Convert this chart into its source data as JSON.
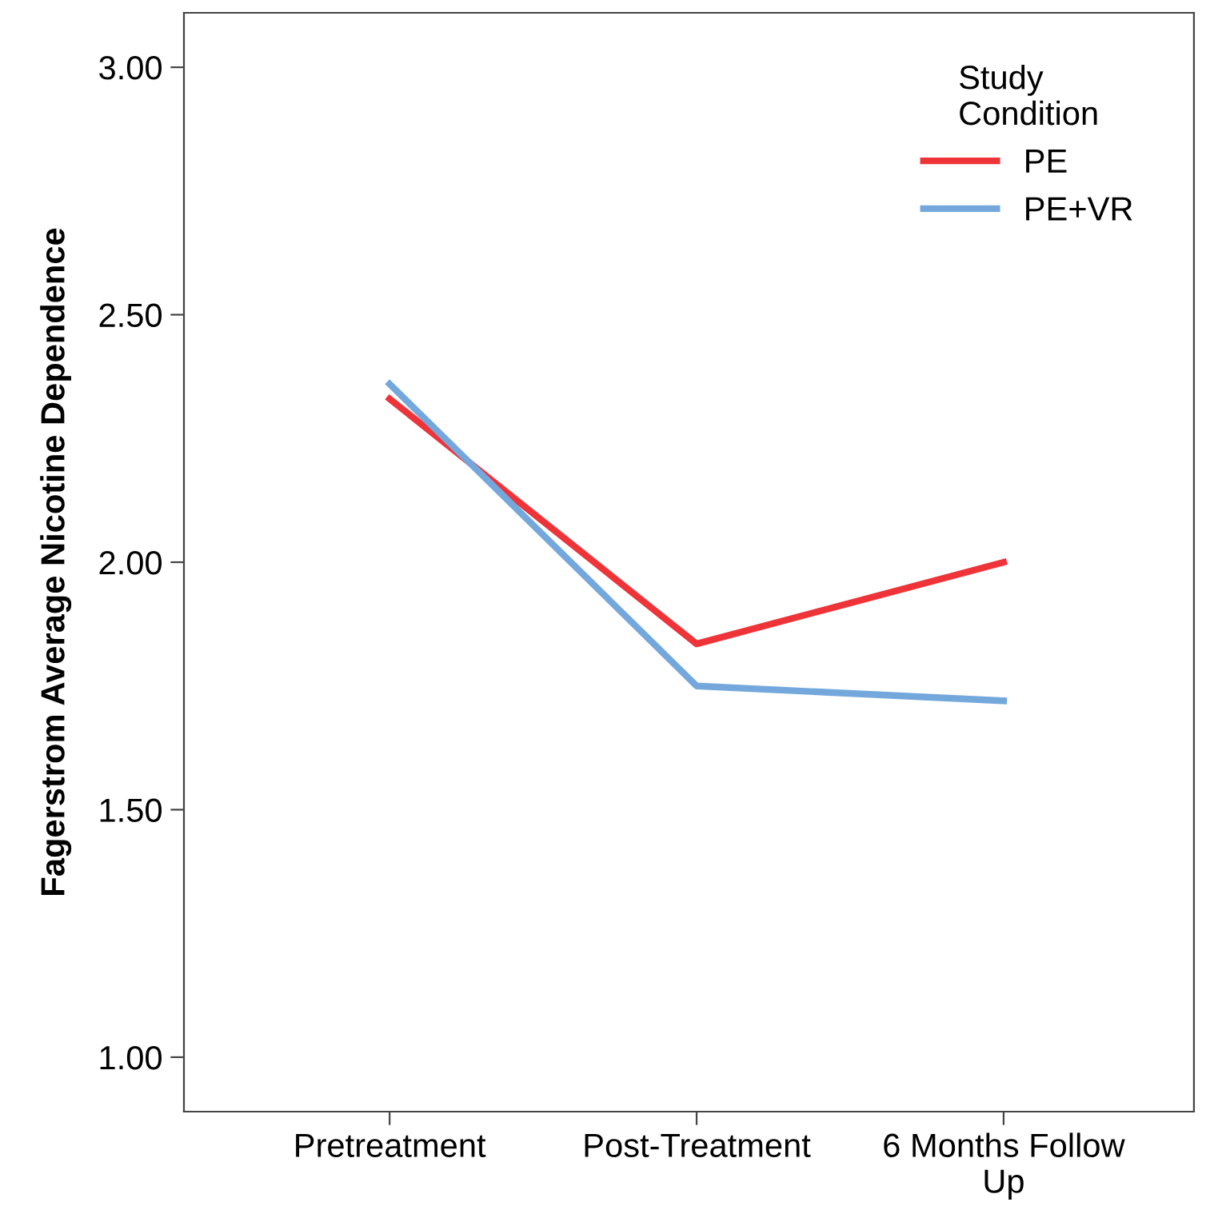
{
  "chart_data": {
    "type": "line",
    "ylabel": "Fagerstrom Average Nicotine Dependence",
    "legend_title": "Study\nCondition",
    "categories": [
      "Pretreatment",
      "Post-Treatment",
      "6 Months Follow\nUp"
    ],
    "series": [
      {
        "name": "PE",
        "color": "#ee3438",
        "values": [
          2.33,
          1.835,
          2.0
        ]
      },
      {
        "name": "PE+VR",
        "color": "#74a8dc",
        "values": [
          2.36,
          1.75,
          1.72
        ]
      }
    ],
    "ylim": [
      0.89,
      3.11
    ],
    "yticks": [
      {
        "value": 1.0,
        "label": "1.00"
      },
      {
        "value": 1.5,
        "label": "1.50"
      },
      {
        "value": 2.0,
        "label": "2.00"
      },
      {
        "value": 2.5,
        "label": "2.50"
      },
      {
        "value": 3.0,
        "label": "3.00"
      }
    ],
    "grid": false,
    "legend": "top right",
    "marker": "none",
    "line_style": "solid"
  }
}
